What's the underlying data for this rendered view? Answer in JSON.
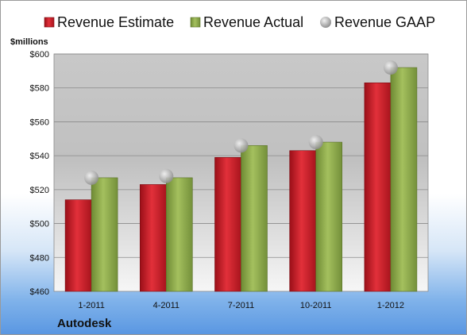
{
  "chart_data": {
    "type": "bar",
    "unit_label": "$millions",
    "company": "Autodesk",
    "categories": [
      "1-2011",
      "4-2011",
      "7-2011",
      "10-2011",
      "1-2012"
    ],
    "series": [
      {
        "name": "Revenue Estimate",
        "kind": "bar",
        "color": "#c0202a",
        "values": [
          514,
          523,
          539,
          543,
          583
        ]
      },
      {
        "name": "Revenue Actual",
        "kind": "bar",
        "color": "#8aa84a",
        "values": [
          527,
          527,
          546,
          548,
          592
        ]
      },
      {
        "name": "Revenue GAAP",
        "kind": "marker",
        "color": "#b5b5b5",
        "values": [
          527,
          528,
          546,
          548,
          592
        ]
      }
    ],
    "y_ticks": [
      "$460",
      "$480",
      "$500",
      "$520",
      "$540",
      "$560",
      "$580",
      "$600"
    ],
    "ylim": [
      460,
      600
    ],
    "ystep": 20,
    "grid": true,
    "legend_position": "top"
  }
}
